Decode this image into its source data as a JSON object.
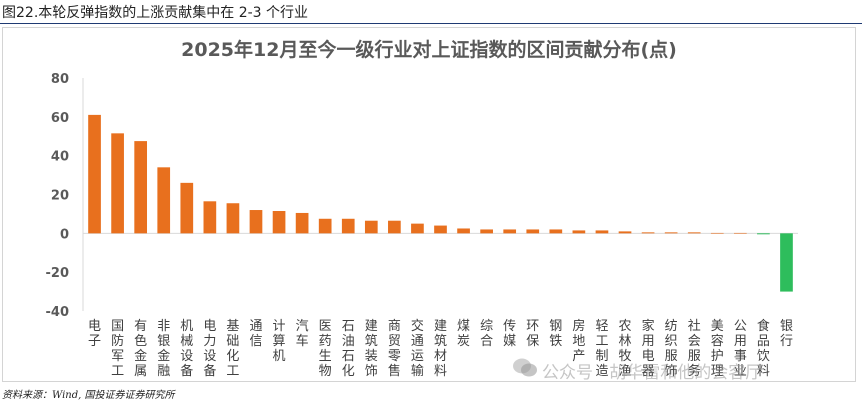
{
  "caption": "图22.本轮反弹指数的上涨贡献集中在 2-3 个行业",
  "source": "资料来源：Wind, 国投证券证券研究所",
  "watermark": "公众号 · 胡华雷和他的会客厅",
  "colors": {
    "positive": "#e8701e",
    "negative": "#2ebd5c",
    "axis": "#d9d9d9",
    "text": "#595959"
  },
  "chart_data": {
    "type": "bar",
    "title": "2025年12月至今一级行业对上证指数的区间贡献分布(点)",
    "categories": [
      "电子",
      "国防军工",
      "有色金属",
      "非银金融",
      "机械设备",
      "电力设备",
      "基础化工",
      "通信",
      "计算机",
      "汽车",
      "医药生物",
      "石油石化",
      "建筑装饰",
      "商贸零售",
      "交通运输",
      "建筑材料",
      "煤炭",
      "综合",
      "传媒",
      "环保",
      "钢铁",
      "房地产",
      "轻工制造",
      "农林牧渔",
      "家用电器",
      "纺织服饰",
      "社会服务",
      "美容护理",
      "公用事业",
      "食品饮料",
      "银行"
    ],
    "values": [
      61,
      51.5,
      47.5,
      34,
      26,
      16.5,
      15.5,
      12,
      11.5,
      10.5,
      7.5,
      7.5,
      6.5,
      6.5,
      5,
      4,
      2.5,
      2,
      2,
      2,
      2,
      1.5,
      1.5,
      1,
      0.5,
      0.5,
      0.5,
      0.2,
      0.2,
      -0.5,
      -30
    ],
    "ylim": [
      -40,
      80
    ],
    "yticks": [
      -40,
      -20,
      0,
      20,
      40,
      60,
      80
    ],
    "grid": false,
    "legend": "none"
  }
}
